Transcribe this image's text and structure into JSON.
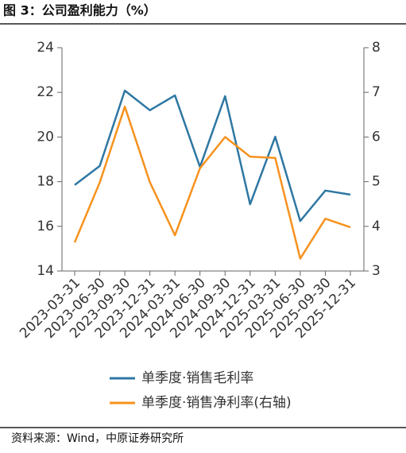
{
  "chart_data": {
    "type": "line",
    "title": "图 3：公司盈利能力（%）",
    "source": "资料来源：Wind，中原证券研究所",
    "categories": [
      "2023-03-31",
      "2023-06-30",
      "2023-09-30",
      "2023-12-31",
      "2024-03-31",
      "2024-06-30",
      "2024-09-30",
      "2024-12-31",
      "2025-03-31",
      "2025-06-30",
      "2025-09-30",
      "2025-12-31"
    ],
    "series": [
      {
        "name": "单季度·销售毛利率",
        "color": "#2e77a3",
        "axis": "y",
        "values": [
          17.85,
          18.7,
          22.08,
          21.2,
          21.86,
          18.66,
          21.83,
          16.99,
          20.01,
          16.24,
          17.6,
          17.42
        ]
      },
      {
        "name": "单季度·销售净利率(右轴)",
        "color": "#f7921e",
        "axis": "y2",
        "values": [
          3.64,
          4.98,
          6.68,
          4.99,
          3.8,
          5.3,
          6.0,
          5.56,
          5.53,
          3.28,
          4.17,
          3.98
        ]
      }
    ],
    "ylim": [
      14,
      24
    ],
    "yticks": [
      14,
      16,
      18,
      20,
      22,
      24
    ],
    "y2lim": [
      3,
      8
    ],
    "y2ticks": [
      3,
      4,
      5,
      6,
      7,
      8
    ]
  }
}
